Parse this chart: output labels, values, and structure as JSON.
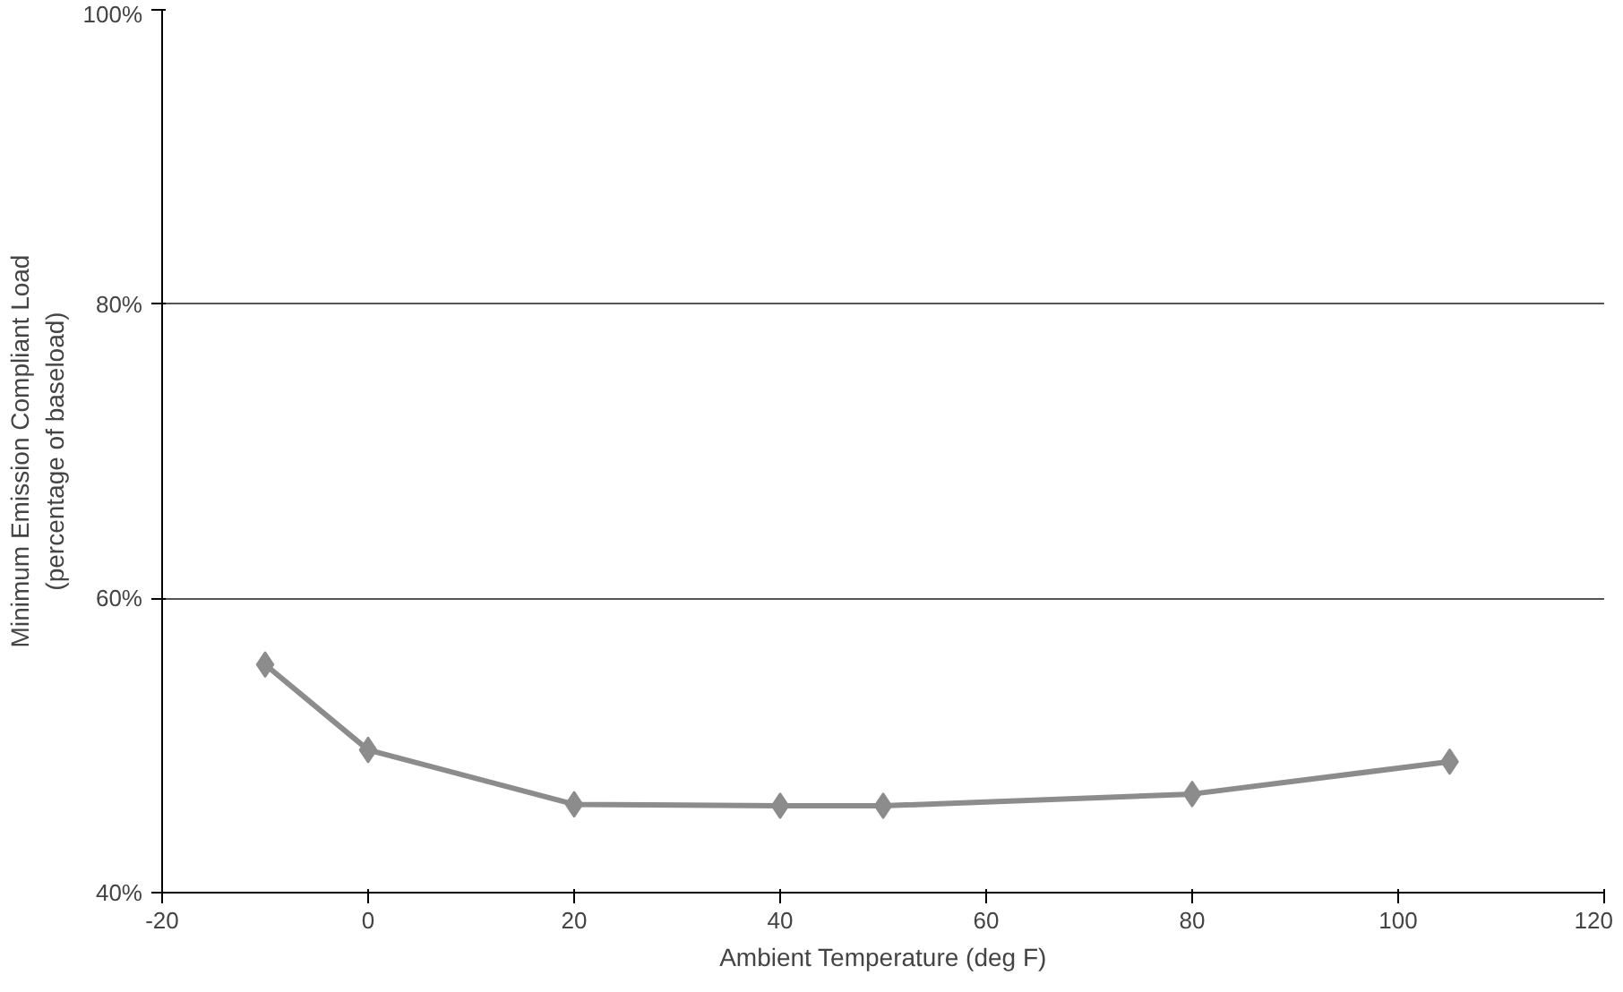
{
  "chart_data": {
    "type": "line",
    "xlabel": "Ambient Temperature (deg F)",
    "ylabel": "Minimum Emission Compliant Load\n(percentage of baseload)",
    "x": [
      -10,
      0,
      20,
      40,
      50,
      80,
      105
    ],
    "series": [
      {
        "color": "#8c8c8c",
        "values": [
          55.5,
          49.7,
          46.0,
          45.9,
          45.9,
          46.7,
          48.9
        ]
      }
    ],
    "xlim": [
      -20,
      120
    ],
    "xticks": [
      -20,
      0,
      20,
      40,
      60,
      80,
      100,
      120
    ],
    "ylim": [
      40,
      100
    ],
    "yticks": [
      {
        "value": 40,
        "label": "40%"
      },
      {
        "value": 60,
        "label": "60%"
      },
      {
        "value": 80,
        "label": "80%"
      },
      {
        "value": 100,
        "label": "100%"
      }
    ],
    "grid": "y",
    "marker": "diamond",
    "line_style": "solid"
  }
}
